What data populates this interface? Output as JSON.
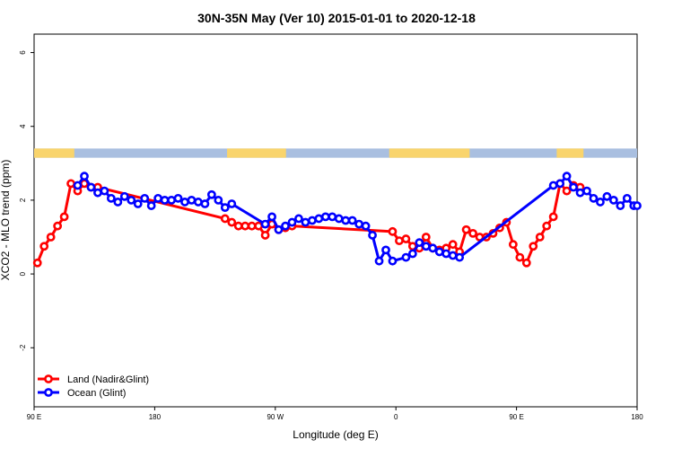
{
  "chart_data": {
    "type": "line",
    "title": "30N-35N May (Ver 10)   2015-01-01 to 2020-12-18",
    "xlabel": "Longitude (deg E)",
    "ylabel": "XCO2 - MLO trend (ppm)",
    "xlim": [
      90,
      540
    ],
    "ylim": [
      -3.6,
      6.5
    ],
    "x_ticks": [
      {
        "value": 90,
        "label": "90 E"
      },
      {
        "value": 180,
        "label": "180"
      },
      {
        "value": 270,
        "label": "90 W"
      },
      {
        "value": 360,
        "label": "0"
      },
      {
        "value": 450,
        "label": "90 E"
      },
      {
        "value": 540,
        "label": "180"
      }
    ],
    "y_ticks": [
      {
        "value": -2,
        "label": "-2"
      },
      {
        "value": 0,
        "label": "0"
      },
      {
        "value": 2,
        "label": "2"
      },
      {
        "value": 4,
        "label": "4"
      },
      {
        "value": 6,
        "label": "6"
      }
    ],
    "legend_position": "bottom-left",
    "land_ocean_strip": {
      "ymin": 3.15,
      "ymax": 3.4,
      "ocean_color": "#a9bfe0",
      "land_color": "#f9d46c",
      "land_segments": [
        [
          90,
          120
        ],
        [
          234,
          278
        ],
        [
          355,
          415
        ],
        [
          480,
          500
        ]
      ]
    },
    "series": [
      {
        "name": "Land (Nadir&Glint)",
        "color": "#ff0000",
        "x": [
          92.5,
          97.5,
          102.5,
          107.5,
          112.5,
          117.5,
          122.5,
          127.5,
          132.5,
          137.5,
          232.5,
          237.5,
          242.5,
          247.5,
          252.5,
          257.5,
          262.5,
          267.5,
          272.5,
          277.5,
          282.5,
          357.5,
          362.5,
          367.5,
          372.5,
          377.5,
          382.5,
          387.5,
          392.5,
          397.5,
          402.5,
          407.5,
          412.5,
          417.5,
          422.5,
          427.5,
          432.5,
          437.5,
          442.5,
          447.5,
          452.5,
          457.5,
          462.5,
          467.5,
          472.5,
          477.5,
          482.5,
          487.5,
          492.5,
          497.5
        ],
        "y": [
          0.3,
          0.75,
          1.0,
          1.3,
          1.55,
          2.45,
          2.25,
          2.45,
          2.35,
          2.35,
          1.5,
          1.4,
          1.3,
          1.3,
          1.3,
          1.3,
          1.05,
          1.35,
          1.2,
          1.25,
          1.3,
          1.15,
          0.9,
          0.95,
          0.75,
          0.7,
          1.0,
          0.7,
          0.65,
          0.7,
          0.8,
          0.6,
          1.2,
          1.1,
          1.0,
          1.0,
          1.1,
          1.25,
          1.4,
          0.8,
          0.45,
          0.3,
          0.75,
          1.0,
          1.3,
          1.55,
          2.45,
          2.25,
          2.4,
          2.35
        ]
      },
      {
        "name": "Ocean (Glint)",
        "color": "#0000ff",
        "x": [
          122.5,
          127.5,
          132.5,
          137.5,
          142.5,
          147.5,
          152.5,
          157.5,
          162.5,
          167.5,
          172.5,
          177.5,
          182.5,
          187.5,
          192.5,
          197.5,
          202.5,
          207.5,
          212.5,
          217.5,
          222.5,
          227.5,
          232.5,
          237.5,
          262.5,
          267.5,
          272.5,
          277.5,
          282.5,
          287.5,
          292.5,
          297.5,
          302.5,
          307.5,
          312.5,
          317.5,
          322.5,
          327.5,
          332.5,
          337.5,
          342.5,
          347.5,
          352.5,
          357.5,
          367.5,
          372.5,
          377.5,
          382.5,
          387.5,
          392.5,
          397.5,
          402.5,
          407.5,
          477.5,
          482.5,
          487.5,
          492.5,
          497.5,
          502.5,
          507.5,
          512.5,
          517.5,
          522.5,
          527.5,
          532.5,
          537.5,
          540
        ],
        "y": [
          2.4,
          2.65,
          2.35,
          2.2,
          2.25,
          2.05,
          1.95,
          2.1,
          2.0,
          1.9,
          2.05,
          1.85,
          2.05,
          2.0,
          2.0,
          2.05,
          1.95,
          2.0,
          1.95,
          1.9,
          2.15,
          2.0,
          1.8,
          1.9,
          1.35,
          1.55,
          1.2,
          1.3,
          1.4,
          1.5,
          1.4,
          1.45,
          1.5,
          1.55,
          1.55,
          1.5,
          1.45,
          1.45,
          1.35,
          1.3,
          1.05,
          0.35,
          0.65,
          0.35,
          0.45,
          0.55,
          0.85,
          0.75,
          0.7,
          0.6,
          0.55,
          0.5,
          0.45,
          2.4,
          2.45,
          2.65,
          2.35,
          2.2,
          2.25,
          2.05,
          1.95,
          2.1,
          2.0,
          1.85,
          2.05,
          1.85,
          1.85
        ]
      }
    ]
  }
}
